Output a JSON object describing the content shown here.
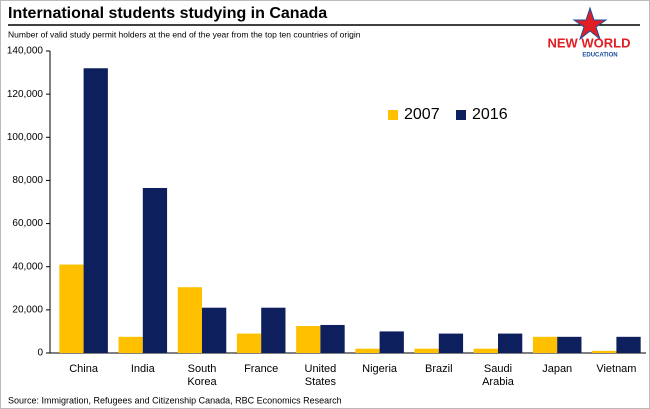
{
  "chart_data": {
    "type": "bar",
    "title": "International students studying in Canada",
    "subtitle": "Number of valid study permit holders at the end of the year from the top ten countries of origin",
    "source": "Source: Immigration, Refugees and Citizenship Canada, RBC Economics Research",
    "logo": [
      "NEW WORLD",
      "EDUCATION"
    ],
    "categories": [
      "China",
      "India",
      "South Korea",
      "France",
      "United States",
      "Nigeria",
      "Brazil",
      "Saudi Arabia",
      "Japan",
      "Vietnam"
    ],
    "series": [
      {
        "name": "2007",
        "color": "#ffc000",
        "values": [
          41000,
          7500,
          30500,
          9000,
          12500,
          2000,
          2000,
          2000,
          7500,
          1000
        ]
      },
      {
        "name": "2016",
        "color": "#0d1f5c",
        "values": [
          132000,
          76500,
          21000,
          21000,
          13000,
          10000,
          9000,
          9000,
          7500,
          7500
        ]
      }
    ],
    "ylim": [
      0,
      140000
    ],
    "yticks": [
      0,
      {
        "value": 20000,
        "label": "20,000"
      },
      {
        "value": 40000,
        "label": "40,000"
      },
      {
        "value": 60000,
        "label": "60,000"
      },
      {
        "value": 80000,
        "label": "80,000"
      },
      {
        "value": 100000,
        "label": "100,000"
      },
      {
        "value": 120000,
        "label": "120,000"
      },
      {
        "value": 140000,
        "label": "140,000"
      }
    ],
    "grid": false
  }
}
